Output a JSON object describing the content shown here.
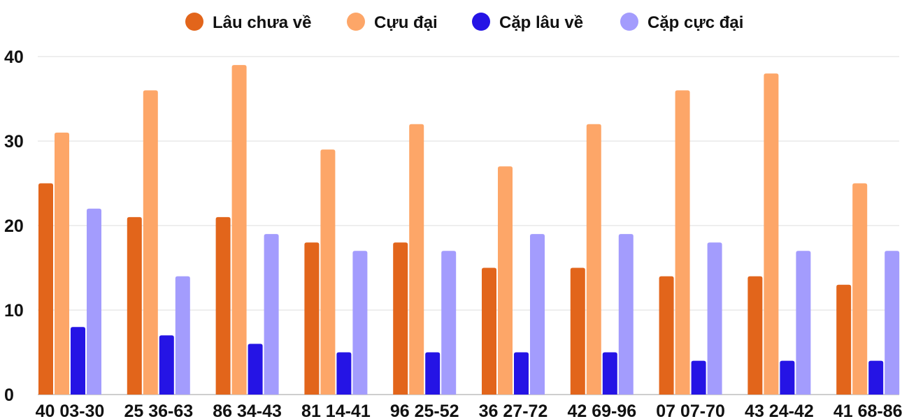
{
  "chart_data": {
    "type": "bar",
    "categories": [
      "40 03-30",
      "25 36-63",
      "86 34-43",
      "81 14-41",
      "96 25-52",
      "36 27-72",
      "42 69-96",
      "07 07-70",
      "43 24-42",
      "41 68-86"
    ],
    "series": [
      {
        "name": "Lâu chưa về",
        "color": "#e2651b",
        "values": [
          25,
          21,
          21,
          18,
          18,
          15,
          15,
          14,
          14,
          13
        ]
      },
      {
        "name": "Cựu đại",
        "color": "#fda668",
        "values": [
          31,
          36,
          39,
          29,
          32,
          27,
          32,
          36,
          38,
          25
        ]
      },
      {
        "name": "Cặp lâu về",
        "color": "#2514e5",
        "values": [
          8,
          7,
          6,
          5,
          5,
          5,
          5,
          4,
          4,
          4
        ]
      },
      {
        "name": "Cặp cực đại",
        "color": "#a39cfd",
        "values": [
          22,
          14,
          19,
          17,
          17,
          19,
          19,
          18,
          17,
          17
        ]
      }
    ],
    "yticks": [
      "0",
      "10",
      "20",
      "30",
      "40"
    ],
    "ylim": [
      0,
      40
    ],
    "grid": true,
    "legend_position": "top-center",
    "xlabel": "",
    "ylabel": ""
  }
}
